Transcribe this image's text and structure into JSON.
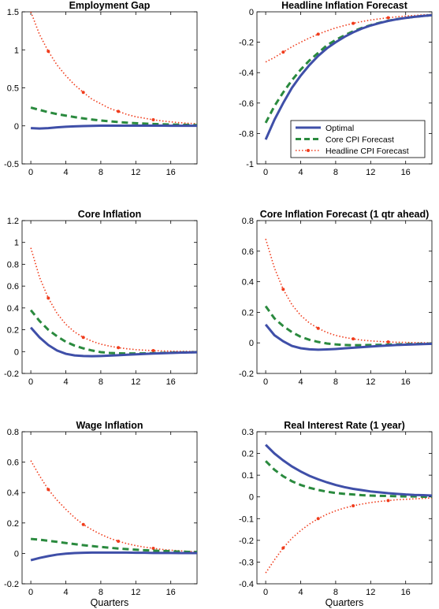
{
  "colors": {
    "optimal": "#3f4fa8",
    "core": "#2a8a3e",
    "headline": "#f03c1c"
  },
  "legend": {
    "entries": [
      "Optimal",
      "Core CPI Forecast",
      "Headline CPI Forecast"
    ],
    "placement": "lower-right of Headline Inflation Forecast panel"
  },
  "chart_data": [
    {
      "type": "line",
      "title": "Employment Gap",
      "xlabel": "",
      "xlim": [
        -1,
        19
      ],
      "ylim": [
        -0.5,
        1.5
      ],
      "xticks": [
        0,
        4,
        8,
        12,
        16
      ],
      "yticks": [
        -0.5,
        0,
        0.5,
        1,
        1.5
      ],
      "ytick_labels": [
        "-0.5",
        "0",
        "0.5",
        "1",
        "1.5"
      ],
      "x": [
        0,
        1,
        2,
        3,
        4,
        5,
        6,
        7,
        8,
        9,
        10,
        11,
        12,
        13,
        14,
        15,
        16,
        17,
        18,
        19
      ],
      "series": [
        {
          "values": [
            -0.03,
            -0.035,
            -0.03,
            -0.02,
            -0.012,
            -0.006,
            -0.002,
            0.0,
            0.002,
            0.003,
            0.003,
            0.003,
            0.003,
            0.002,
            0.002,
            0.002,
            0.001,
            0.001,
            0.001,
            0.001
          ]
        },
        {
          "values": [
            0.24,
            0.21,
            0.18,
            0.155,
            0.135,
            0.115,
            0.098,
            0.083,
            0.07,
            0.06,
            0.05,
            0.042,
            0.035,
            0.03,
            0.025,
            0.021,
            0.018,
            0.015,
            0.013,
            0.011
          ]
        },
        {
          "values": [
            1.5,
            1.2,
            0.98,
            0.8,
            0.66,
            0.54,
            0.44,
            0.35,
            0.29,
            0.23,
            0.19,
            0.15,
            0.12,
            0.1,
            0.08,
            0.065,
            0.052,
            0.042,
            0.034,
            0.028
          ]
        }
      ]
    },
    {
      "type": "line",
      "title": "Headline Inflation Forecast",
      "xlabel": "",
      "xlim": [
        -1,
        19
      ],
      "ylim": [
        -1,
        0
      ],
      "xticks": [
        0,
        4,
        8,
        12,
        16
      ],
      "yticks": [
        -1,
        -0.8,
        -0.6,
        -0.4,
        -0.2,
        0
      ],
      "ytick_labels": [
        "-1",
        "-0.8",
        "-0.6",
        "-0.4",
        "-0.2",
        "0"
      ],
      "x": [
        0,
        1,
        2,
        3,
        4,
        5,
        6,
        7,
        8,
        9,
        10,
        11,
        12,
        13,
        14,
        15,
        16,
        17,
        18,
        19
      ],
      "series": [
        {
          "values": [
            -0.84,
            -0.71,
            -0.6,
            -0.5,
            -0.42,
            -0.35,
            -0.29,
            -0.24,
            -0.2,
            -0.165,
            -0.135,
            -0.11,
            -0.09,
            -0.074,
            -0.06,
            -0.049,
            -0.04,
            -0.033,
            -0.027,
            -0.022
          ]
        },
        {
          "values": [
            -0.73,
            -0.62,
            -0.53,
            -0.45,
            -0.38,
            -0.32,
            -0.27,
            -0.22,
            -0.185,
            -0.155,
            -0.128,
            -0.106,
            -0.088,
            -0.072,
            -0.059,
            -0.048,
            -0.04,
            -0.033,
            -0.027,
            -0.022
          ]
        },
        {
          "values": [
            -0.33,
            -0.3,
            -0.265,
            -0.23,
            -0.2,
            -0.172,
            -0.147,
            -0.125,
            -0.106,
            -0.09,
            -0.076,
            -0.064,
            -0.054,
            -0.046,
            -0.039,
            -0.033,
            -0.028,
            -0.024,
            -0.02,
            -0.017
          ]
        }
      ]
    },
    {
      "type": "line",
      "title": "Core Inflation",
      "xlabel": "",
      "xlim": [
        -1,
        19
      ],
      "ylim": [
        -0.2,
        1.2
      ],
      "xticks": [
        0,
        4,
        8,
        12,
        16
      ],
      "yticks": [
        -0.2,
        0,
        0.2,
        0.4,
        0.6,
        0.8,
        1,
        1.2
      ],
      "ytick_labels": [
        "-0.2",
        "0",
        "0.2",
        "0.4",
        "0.6",
        "0.8",
        "1",
        "1.2"
      ],
      "x": [
        0,
        1,
        2,
        3,
        4,
        5,
        6,
        7,
        8,
        9,
        10,
        11,
        12,
        13,
        14,
        15,
        16,
        17,
        18,
        19
      ],
      "series": [
        {
          "values": [
            0.22,
            0.13,
            0.06,
            0.01,
            -0.02,
            -0.035,
            -0.04,
            -0.042,
            -0.04,
            -0.037,
            -0.033,
            -0.029,
            -0.025,
            -0.021,
            -0.018,
            -0.015,
            -0.012,
            -0.01,
            -0.008,
            -0.006
          ]
        },
        {
          "values": [
            0.38,
            0.28,
            0.2,
            0.14,
            0.09,
            0.055,
            0.03,
            0.01,
            -0.005,
            -0.012,
            -0.016,
            -0.017,
            -0.017,
            -0.016,
            -0.014,
            -0.012,
            -0.01,
            -0.008,
            -0.007,
            -0.005
          ]
        },
        {
          "values": [
            0.95,
            0.68,
            0.49,
            0.35,
            0.25,
            0.18,
            0.13,
            0.095,
            0.068,
            0.05,
            0.036,
            0.026,
            0.018,
            0.013,
            0.009,
            0.006,
            0.004,
            0.003,
            0.002,
            0.001
          ]
        }
      ]
    },
    {
      "type": "line",
      "title": "Core Inflation Forecast (1 qtr ahead)",
      "xlabel": "",
      "xlim": [
        -1,
        19
      ],
      "ylim": [
        -0.2,
        0.8
      ],
      "xticks": [
        0,
        4,
        8,
        12,
        16
      ],
      "yticks": [
        -0.2,
        0,
        0.2,
        0.4,
        0.6,
        0.8
      ],
      "ytick_labels": [
        "-0.2",
        "0",
        "0.2",
        "0.4",
        "0.6",
        "0.8"
      ],
      "x": [
        0,
        1,
        2,
        3,
        4,
        5,
        6,
        7,
        8,
        9,
        10,
        11,
        12,
        13,
        14,
        15,
        16,
        17,
        18,
        19
      ],
      "series": [
        {
          "values": [
            0.12,
            0.05,
            0.01,
            -0.02,
            -0.035,
            -0.042,
            -0.045,
            -0.043,
            -0.04,
            -0.036,
            -0.032,
            -0.028,
            -0.024,
            -0.02,
            -0.017,
            -0.014,
            -0.012,
            -0.01,
            -0.008,
            -0.006
          ]
        },
        {
          "values": [
            0.24,
            0.16,
            0.11,
            0.07,
            0.04,
            0.02,
            0.006,
            -0.004,
            -0.01,
            -0.014,
            -0.015,
            -0.015,
            -0.014,
            -0.013,
            -0.011,
            -0.01,
            -0.008,
            -0.007,
            -0.006,
            -0.005
          ]
        },
        {
          "values": [
            0.68,
            0.49,
            0.35,
            0.25,
            0.18,
            0.13,
            0.095,
            0.068,
            0.049,
            0.036,
            0.026,
            0.018,
            0.013,
            0.009,
            0.006,
            0.004,
            0.003,
            0.002,
            0.001,
            0.0
          ]
        }
      ]
    },
    {
      "type": "line",
      "title": "Wage Inflation",
      "xlabel": "Quarters",
      "xlim": [
        -1,
        19
      ],
      "ylim": [
        -0.2,
        0.8
      ],
      "xticks": [
        0,
        4,
        8,
        12,
        16
      ],
      "yticks": [
        -0.2,
        0,
        0.2,
        0.4,
        0.6,
        0.8
      ],
      "ytick_labels": [
        "-0.2",
        "0",
        "0.2",
        "0.4",
        "0.6",
        "0.8"
      ],
      "x": [
        0,
        1,
        2,
        3,
        4,
        5,
        6,
        7,
        8,
        9,
        10,
        11,
        12,
        13,
        14,
        15,
        16,
        17,
        18,
        19
      ],
      "series": [
        {
          "values": [
            -0.045,
            -0.03,
            -0.018,
            -0.008,
            -0.002,
            0.002,
            0.004,
            0.005,
            0.005,
            0.005,
            0.005,
            0.005,
            0.004,
            0.004,
            0.003,
            0.003,
            0.003,
            0.002,
            0.002,
            0.002
          ]
        },
        {
          "values": [
            0.095,
            0.09,
            0.083,
            0.076,
            0.068,
            0.061,
            0.054,
            0.048,
            0.042,
            0.037,
            0.032,
            0.028,
            0.024,
            0.021,
            0.018,
            0.016,
            0.014,
            0.012,
            0.01,
            0.009
          ]
        },
        {
          "values": [
            0.61,
            0.51,
            0.42,
            0.35,
            0.29,
            0.235,
            0.19,
            0.155,
            0.125,
            0.1,
            0.08,
            0.064,
            0.051,
            0.041,
            0.033,
            0.026,
            0.021,
            0.017,
            0.013,
            0.011
          ]
        }
      ]
    },
    {
      "type": "line",
      "title": "Real Interest Rate (1 year)",
      "xlabel": "Quarters",
      "xlim": [
        -1,
        19
      ],
      "ylim": [
        -0.4,
        0.3
      ],
      "xticks": [
        0,
        4,
        8,
        12,
        16
      ],
      "yticks": [
        -0.4,
        -0.3,
        -0.2,
        -0.1,
        0,
        0.1,
        0.2,
        0.3
      ],
      "ytick_labels": [
        "-0.4",
        "-0.3",
        "-0.2",
        "-0.1",
        "0",
        "0.1",
        "0.2",
        "0.3"
      ],
      "x": [
        0,
        1,
        2,
        3,
        4,
        5,
        6,
        7,
        8,
        9,
        10,
        11,
        12,
        13,
        14,
        15,
        16,
        17,
        18,
        19
      ],
      "series": [
        {
          "values": [
            0.24,
            0.2,
            0.168,
            0.14,
            0.117,
            0.097,
            0.081,
            0.067,
            0.055,
            0.045,
            0.037,
            0.031,
            0.025,
            0.021,
            0.017,
            0.014,
            0.011,
            0.009,
            0.008,
            0.006
          ]
        },
        {
          "values": [
            0.165,
            0.125,
            0.095,
            0.072,
            0.055,
            0.042,
            0.032,
            0.024,
            0.018,
            0.014,
            0.011,
            0.008,
            0.006,
            0.005,
            0.004,
            0.003,
            0.002,
            0.002,
            0.001,
            0.001
          ]
        },
        {
          "values": [
            -0.35,
            -0.29,
            -0.235,
            -0.19,
            -0.155,
            -0.125,
            -0.1,
            -0.08,
            -0.064,
            -0.051,
            -0.041,
            -0.033,
            -0.026,
            -0.021,
            -0.017,
            -0.013,
            -0.011,
            -0.009,
            -0.007,
            -0.005
          ]
        }
      ]
    }
  ]
}
